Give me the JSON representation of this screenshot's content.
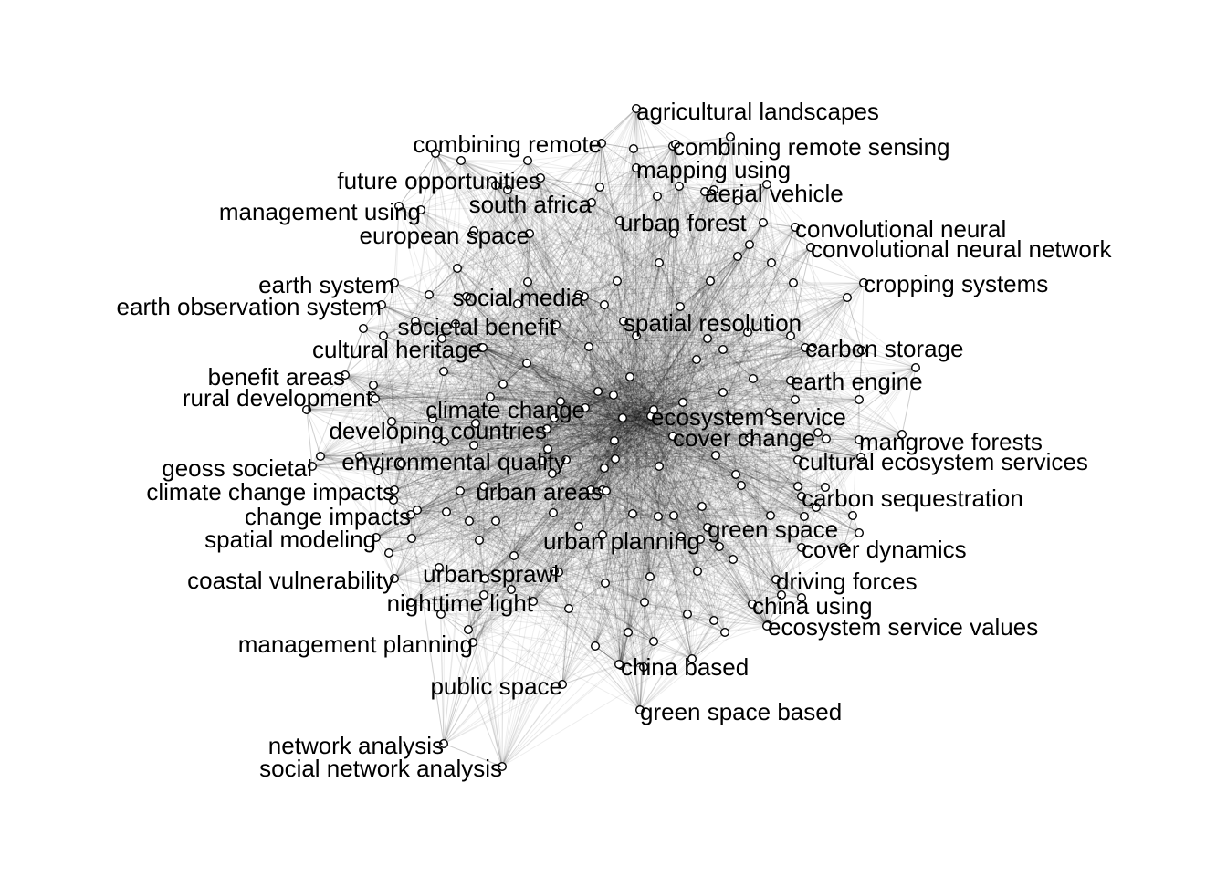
{
  "graph": {
    "type": "network",
    "labeled_nodes": [
      "agricultural landscapes",
      "combining remote",
      "combining remote sensing",
      "mapping using",
      "future opportunities",
      "aerial vehicle",
      "south africa",
      "management using",
      "urban forest",
      "convolutional neural",
      "european space",
      "convolutional neural network",
      "earth system",
      "cropping systems",
      "social media",
      "earth observation system",
      "spatial resolution",
      "societal benefit",
      "cultural heritage",
      "carbon storage",
      "benefit areas",
      "earth engine",
      "rural development",
      "climate change",
      "ecosystem service",
      "developing countries",
      "cover change",
      "mangrove forests",
      "environmental quality",
      "geoss societal",
      "cultural ecosystem services",
      "urban areas",
      "climate change impacts",
      "carbon sequestration",
      "change impacts",
      "green space",
      "spatial modeling",
      "urban planning",
      "cover dynamics",
      "urban sprawl",
      "coastal vulnerability",
      "driving forces",
      "nighttime light",
      "china using",
      "ecosystem service values",
      "management planning",
      "china based",
      "public space",
      "green space based",
      "network analysis",
      "social network analysis"
    ],
    "colors": {
      "edge": "#000000",
      "node_fill": "#ffffff",
      "node_stroke": "#000000",
      "label": "#000000"
    }
  }
}
